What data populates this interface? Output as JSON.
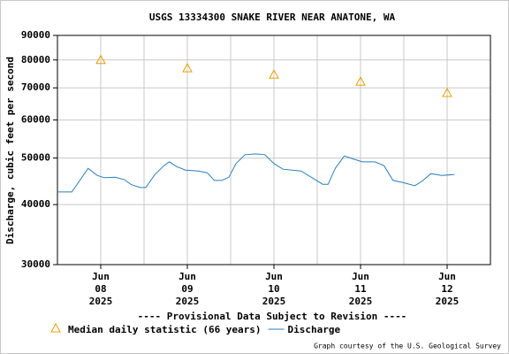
{
  "chart_data": {
    "type": "line",
    "title": "USGS 13334300 SNAKE RIVER NEAR ANATONE, WA",
    "y_label": "Discharge, cubic feet per second",
    "annotations": [
      "---- Provisional Data Subject to Revision ----",
      "Graph courtesy of the U.S. Geological Survey"
    ],
    "annotation_colors": [
      "#e00000",
      "#000000"
    ],
    "log_y": true,
    "grid": true,
    "ylim": [
      30000,
      90000
    ],
    "yticks": [
      30000,
      40000,
      50000,
      60000,
      70000,
      80000,
      90000
    ],
    "xlim": [
      "2025-06-07T12:00",
      "2025-06-12T12:00"
    ],
    "xticks": [
      {
        "value": "2025-06-08T00:00",
        "label": [
          "Jun",
          "08",
          "2025"
        ]
      },
      {
        "value": "2025-06-09T00:00",
        "label": [
          "Jun",
          "09",
          "2025"
        ]
      },
      {
        "value": "2025-06-10T00:00",
        "label": [
          "Jun",
          "10",
          "2025"
        ]
      },
      {
        "value": "2025-06-11T00:00",
        "label": [
          "Jun",
          "11",
          "2025"
        ]
      },
      {
        "value": "2025-06-12T00:00",
        "label": [
          "Jun",
          "12",
          "2025"
        ]
      }
    ],
    "x_minor_grid": [
      "2025-06-08T12:00",
      "2025-06-09T12:00",
      "2025-06-10T12:00",
      "2025-06-11T12:00"
    ],
    "series": [
      {
        "name": "Median daily statistic (66 years)",
        "color": "#e8a000",
        "marker": "triangle",
        "x": [
          "2025-06-08T00:00",
          "2025-06-09T00:00",
          "2025-06-10T00:00",
          "2025-06-11T00:00",
          "2025-06-12T00:00"
        ],
        "values": [
          80000,
          76900,
          74600,
          72100,
          68300
        ]
      },
      {
        "name": "Discharge",
        "color": "#2a7fb8",
        "marker": "line",
        "x": [
          "2025-06-07T12:00",
          "2025-06-07T16:00",
          "2025-06-07T20:30",
          "2025-06-07T23:00",
          "2025-06-08T01:00",
          "2025-06-08T04:00",
          "2025-06-08T06:30",
          "2025-06-08T08:30",
          "2025-06-08T11:00",
          "2025-06-08T12:30",
          "2025-06-08T15:00",
          "2025-06-08T17:30",
          "2025-06-08T19:00",
          "2025-06-08T21:00",
          "2025-06-08T23:30",
          "2025-06-09T03:00",
          "2025-06-09T05:30",
          "2025-06-09T07:30",
          "2025-06-09T09:30",
          "2025-06-09T11:30",
          "2025-06-09T13:30",
          "2025-06-09T16:00",
          "2025-06-09T19:00",
          "2025-06-09T21:30",
          "2025-06-10T00:00",
          "2025-06-10T02:30",
          "2025-06-10T07:30",
          "2025-06-10T11:00",
          "2025-06-10T13:30",
          "2025-06-10T15:00",
          "2025-06-10T17:00",
          "2025-06-10T19:30",
          "2025-06-10T21:30",
          "2025-06-11T00:30",
          "2025-06-11T04:00",
          "2025-06-11T06:30",
          "2025-06-11T09:00",
          "2025-06-11T11:30",
          "2025-06-11T15:00",
          "2025-06-11T17:00",
          "2025-06-11T19:30",
          "2025-06-11T22:30",
          "2025-06-12T02:00"
        ],
        "values": [
          42500,
          42500,
          47600,
          46000,
          45500,
          45600,
          45100,
          44000,
          43400,
          43400,
          46200,
          48200,
          49100,
          48000,
          47200,
          47000,
          46600,
          44900,
          44900,
          45600,
          48700,
          50800,
          51000,
          50800,
          48700,
          47400,
          47000,
          45300,
          44100,
          44100,
          47600,
          50500,
          49900,
          49100,
          49100,
          48200,
          44900,
          44500,
          43800,
          44700,
          46400,
          46000,
          46200
        ]
      }
    ]
  }
}
